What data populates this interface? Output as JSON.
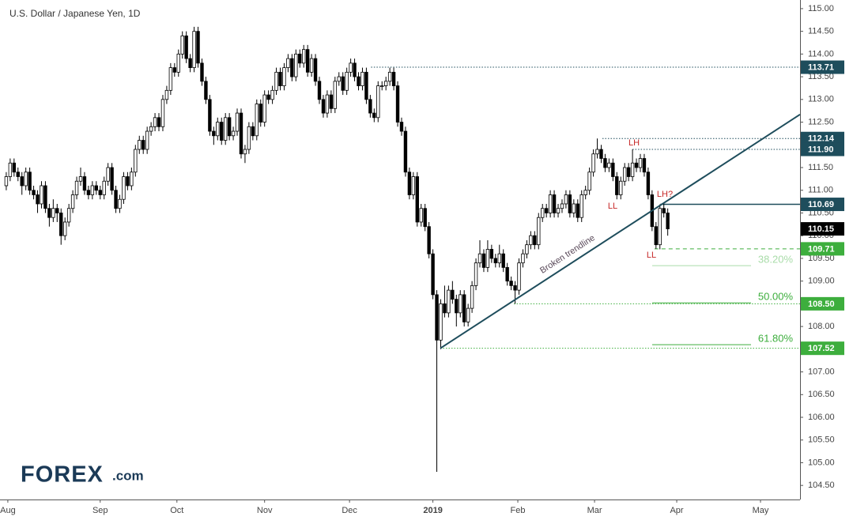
{
  "chart_data": {
    "type": "candlestick",
    "title": "U.S. Dollar / Japanese Yen, 1D",
    "brand": "FOREX",
    "brand_suffix": ".com",
    "ylim": [
      104.19,
      115.19
    ],
    "yticks": [
      {
        "value": 104.5,
        "label": "104.50"
      },
      {
        "value": 105,
        "label": "105.00"
      },
      {
        "value": 105.5,
        "label": "105.50"
      },
      {
        "value": 106,
        "label": "106.00"
      },
      {
        "value": 106.5,
        "label": "106.50"
      },
      {
        "value": 107,
        "label": "107.00"
      },
      {
        "value": 107.5,
        "label": "107.50"
      },
      {
        "value": 108,
        "label": "108.00"
      },
      {
        "value": 108.5,
        "label": "108.50"
      },
      {
        "value": 109,
        "label": "109.00"
      },
      {
        "value": 109.5,
        "label": "109.50"
      },
      {
        "value": 110,
        "label": "110.00"
      },
      {
        "value": 110.5,
        "label": "110.50"
      },
      {
        "value": 111,
        "label": "111.00"
      },
      {
        "value": 111.5,
        "label": "111.50"
      },
      {
        "value": 112,
        "label": "112.00"
      },
      {
        "value": 112.5,
        "label": "112.50"
      },
      {
        "value": 113,
        "label": "113.00"
      },
      {
        "value": 113.5,
        "label": "113.50"
      },
      {
        "value": 114,
        "label": "114.00"
      },
      {
        "value": 114.5,
        "label": "114.50"
      },
      {
        "value": 115,
        "label": "115.00"
      }
    ],
    "xlim": [
      -1.6,
      202.8
    ],
    "xticks": [
      {
        "value": 0.4,
        "label": "Aug"
      },
      {
        "value": 24,
        "label": "Sep"
      },
      {
        "value": 43.6,
        "label": "Oct"
      },
      {
        "value": 66,
        "label": "Nov"
      },
      {
        "value": 87.7,
        "label": "Dec"
      },
      {
        "value": 109,
        "label": "2019"
      },
      {
        "value": 130.7,
        "label": "Feb"
      },
      {
        "value": 150.3,
        "label": "Mar"
      },
      {
        "value": 171.3,
        "label": "Apr"
      },
      {
        "value": 192.7,
        "label": "May"
      }
    ],
    "up_color": "#ffffff",
    "down_color": "#000000",
    "candles": [
      [
        111.1,
        111.4,
        111.0,
        111.3
      ],
      [
        111.3,
        111.7,
        111.2,
        111.6
      ],
      [
        111.6,
        111.7,
        111.3,
        111.4
      ],
      [
        111.4,
        111.5,
        111.2,
        111.3
      ],
      [
        111.3,
        111.4,
        110.9,
        111.1
      ],
      [
        111.1,
        111.5,
        111.0,
        111.4
      ],
      [
        111.4,
        111.5,
        110.9,
        111.0
      ],
      [
        111.0,
        111.1,
        110.8,
        110.9
      ],
      [
        110.9,
        111.0,
        110.5,
        110.7
      ],
      [
        110.7,
        111.2,
        110.6,
        111.1
      ],
      [
        111.1,
        111.2,
        110.5,
        110.6
      ],
      [
        110.6,
        110.7,
        110.2,
        110.4
      ],
      [
        110.4,
        110.8,
        110.3,
        110.6
      ],
      [
        110.6,
        110.7,
        110.3,
        110.5
      ],
      [
        110.5,
        110.6,
        109.8,
        110.0
      ],
      [
        110.0,
        110.4,
        109.9,
        110.3
      ],
      [
        110.3,
        110.7,
        110.2,
        110.6
      ],
      [
        110.6,
        111.0,
        110.5,
        110.9
      ],
      [
        110.9,
        111.3,
        110.8,
        111.2
      ],
      [
        111.2,
        111.5,
        111.1,
        111.3
      ],
      [
        111.3,
        111.4,
        110.9,
        111.0
      ],
      [
        111.0,
        111.1,
        110.8,
        110.9
      ],
      [
        110.9,
        111.2,
        110.8,
        111.1
      ],
      [
        111.1,
        111.2,
        110.9,
        111.0
      ],
      [
        111.0,
        111.1,
        110.8,
        110.9
      ],
      [
        110.9,
        111.3,
        110.8,
        111.2
      ],
      [
        111.2,
        111.6,
        111.1,
        111.5
      ],
      [
        111.5,
        111.6,
        110.9,
        111.0
      ],
      [
        111.0,
        111.1,
        110.5,
        110.6
      ],
      [
        110.6,
        110.9,
        110.5,
        110.8
      ],
      [
        110.8,
        111.4,
        110.7,
        111.3
      ],
      [
        111.3,
        111.4,
        111.0,
        111.1
      ],
      [
        111.1,
        111.5,
        111.0,
        111.4
      ],
      [
        111.4,
        112.0,
        111.3,
        111.9
      ],
      [
        111.9,
        112.2,
        111.8,
        112.1
      ],
      [
        112.1,
        112.2,
        111.8,
        111.9
      ],
      [
        111.9,
        112.4,
        111.8,
        112.3
      ],
      [
        112.3,
        112.5,
        112.2,
        112.4
      ],
      [
        112.4,
        112.7,
        112.3,
        112.6
      ],
      [
        112.6,
        112.7,
        112.3,
        112.4
      ],
      [
        112.4,
        113.1,
        112.3,
        113.0
      ],
      [
        113.0,
        113.3,
        112.9,
        113.2
      ],
      [
        113.2,
        113.8,
        113.1,
        113.7
      ],
      [
        113.7,
        113.8,
        113.5,
        113.6
      ],
      [
        113.6,
        114.1,
        113.5,
        114.0
      ],
      [
        114.0,
        114.5,
        113.9,
        114.4
      ],
      [
        114.4,
        114.5,
        113.8,
        113.9
      ],
      [
        113.9,
        114.0,
        113.6,
        113.7
      ],
      [
        113.7,
        114.6,
        113.6,
        114.5
      ],
      [
        114.5,
        114.6,
        113.7,
        113.8
      ],
      [
        113.8,
        113.9,
        113.3,
        113.4
      ],
      [
        113.4,
        113.5,
        112.9,
        113.0
      ],
      [
        113.0,
        113.1,
        112.2,
        112.3
      ],
      [
        112.3,
        112.4,
        112.0,
        112.2
      ],
      [
        112.2,
        112.6,
        112.1,
        112.5
      ],
      [
        112.5,
        112.6,
        112.0,
        112.1
      ],
      [
        112.1,
        112.7,
        112.0,
        112.6
      ],
      [
        112.6,
        112.7,
        112.1,
        112.2
      ],
      [
        112.2,
        112.4,
        112.1,
        112.3
      ],
      [
        112.3,
        112.8,
        112.2,
        112.7
      ],
      [
        112.7,
        112.8,
        111.7,
        111.8
      ],
      [
        111.8,
        112.0,
        111.6,
        111.9
      ],
      [
        111.9,
        112.5,
        111.8,
        112.4
      ],
      [
        112.4,
        112.5,
        112.1,
        112.2
      ],
      [
        112.2,
        113.0,
        112.1,
        112.9
      ],
      [
        112.9,
        113.0,
        112.4,
        112.5
      ],
      [
        112.5,
        113.2,
        112.4,
        113.1
      ],
      [
        113.1,
        113.2,
        112.9,
        113.0
      ],
      [
        113.0,
        113.3,
        112.9,
        113.2
      ],
      [
        113.2,
        113.7,
        113.1,
        113.6
      ],
      [
        113.6,
        113.7,
        113.2,
        113.3
      ],
      [
        113.3,
        113.8,
        113.2,
        113.7
      ],
      [
        113.7,
        114.0,
        113.6,
        113.9
      ],
      [
        113.9,
        114.0,
        113.4,
        113.5
      ],
      [
        113.5,
        114.1,
        113.4,
        114.0
      ],
      [
        114.0,
        114.1,
        113.7,
        113.8
      ],
      [
        113.8,
        114.2,
        113.7,
        114.1
      ],
      [
        114.1,
        114.2,
        113.5,
        113.6
      ],
      [
        113.6,
        114.0,
        113.5,
        113.9
      ],
      [
        113.9,
        114.0,
        113.3,
        113.4
      ],
      [
        113.4,
        113.5,
        112.9,
        113.0
      ],
      [
        113.0,
        113.1,
        112.6,
        112.7
      ],
      [
        112.7,
        113.2,
        112.6,
        113.1
      ],
      [
        113.1,
        113.2,
        112.7,
        112.8
      ],
      [
        112.8,
        113.5,
        112.7,
        113.4
      ],
      [
        113.4,
        113.6,
        113.3,
        113.5
      ],
      [
        113.5,
        113.6,
        113.1,
        113.2
      ],
      [
        113.2,
        113.7,
        113.1,
        113.6
      ],
      [
        113.6,
        113.9,
        113.5,
        113.8
      ],
      [
        113.8,
        113.9,
        113.4,
        113.5
      ],
      [
        113.5,
        113.6,
        113.2,
        113.3
      ],
      [
        113.3,
        113.7,
        113.2,
        113.6
      ],
      [
        113.6,
        113.7,
        112.9,
        113.0
      ],
      [
        113.0,
        113.1,
        112.6,
        112.7
      ],
      [
        112.7,
        112.8,
        112.5,
        112.6
      ],
      [
        112.6,
        113.4,
        112.5,
        113.3
      ],
      [
        113.3,
        113.4,
        113.2,
        113.3
      ],
      [
        113.3,
        113.5,
        113.2,
        113.4
      ],
      [
        113.4,
        113.7,
        113.3,
        113.6
      ],
      [
        113.6,
        113.7,
        113.2,
        113.3
      ],
      [
        113.3,
        113.4,
        112.4,
        112.5
      ],
      [
        112.5,
        112.6,
        112.2,
        112.3
      ],
      [
        112.3,
        112.4,
        111.3,
        111.4
      ],
      [
        111.4,
        111.5,
        110.8,
        110.9
      ],
      [
        110.9,
        111.4,
        110.8,
        111.3
      ],
      [
        111.3,
        111.4,
        110.2,
        110.3
      ],
      [
        110.3,
        110.7,
        110.2,
        110.6
      ],
      [
        110.6,
        110.7,
        110.1,
        110.2
      ],
      [
        110.2,
        110.3,
        109.5,
        109.6
      ],
      [
        109.6,
        109.7,
        108.6,
        108.7
      ],
      [
        108.7,
        108.8,
        104.8,
        107.7
      ],
      [
        107.7,
        108.6,
        107.5,
        108.5
      ],
      [
        108.5,
        108.9,
        108.2,
        108.3
      ],
      [
        108.3,
        108.9,
        108.2,
        108.8
      ],
      [
        108.8,
        109.0,
        108.5,
        108.6
      ],
      [
        108.6,
        108.7,
        108.0,
        108.3
      ],
      [
        108.3,
        108.8,
        108.2,
        108.7
      ],
      [
        108.7,
        108.8,
        108.0,
        108.1
      ],
      [
        108.1,
        108.5,
        108.0,
        108.4
      ],
      [
        108.4,
        109.0,
        108.3,
        108.9
      ],
      [
        108.9,
        109.5,
        108.8,
        109.4
      ],
      [
        109.4,
        109.9,
        109.3,
        109.6
      ],
      [
        109.6,
        109.7,
        109.2,
        109.3
      ],
      [
        109.3,
        109.9,
        109.2,
        109.7
      ],
      [
        109.7,
        109.8,
        109.4,
        109.5
      ],
      [
        109.5,
        109.6,
        109.3,
        109.4
      ],
      [
        109.4,
        109.8,
        109.3,
        109.6
      ],
      [
        109.6,
        109.7,
        109.2,
        109.3
      ],
      [
        109.3,
        109.4,
        108.9,
        109.0
      ],
      [
        109.0,
        109.1,
        108.8,
        108.9
      ],
      [
        108.9,
        109.0,
        108.5,
        108.8
      ],
      [
        108.8,
        109.5,
        108.7,
        109.4
      ],
      [
        109.4,
        109.7,
        109.3,
        109.6
      ],
      [
        109.6,
        109.9,
        109.5,
        109.8
      ],
      [
        109.8,
        110.1,
        109.7,
        110.0
      ],
      [
        110.0,
        110.1,
        109.7,
        109.8
      ],
      [
        109.8,
        110.5,
        109.7,
        110.4
      ],
      [
        110.4,
        110.7,
        110.3,
        110.6
      ],
      [
        110.6,
        110.7,
        110.4,
        110.5
      ],
      [
        110.5,
        111.0,
        110.4,
        110.9
      ],
      [
        110.9,
        111.0,
        110.4,
        110.5
      ],
      [
        110.5,
        110.7,
        110.4,
        110.6
      ],
      [
        110.6,
        110.8,
        110.5,
        110.7
      ],
      [
        110.7,
        111.0,
        110.6,
        110.9
      ],
      [
        110.9,
        111.0,
        110.4,
        110.5
      ],
      [
        110.5,
        110.8,
        110.4,
        110.7
      ],
      [
        110.7,
        110.8,
        110.3,
        110.4
      ],
      [
        110.4,
        111.0,
        110.3,
        110.9
      ],
      [
        110.9,
        111.1,
        110.8,
        111.0
      ],
      [
        111.0,
        111.5,
        110.9,
        111.4
      ],
      [
        111.4,
        111.9,
        111.3,
        111.8
      ],
      [
        111.8,
        112.14,
        111.7,
        111.9
      ],
      [
        111.9,
        112.0,
        111.6,
        111.7
      ],
      [
        111.7,
        111.8,
        111.4,
        111.5
      ],
      [
        111.5,
        111.7,
        111.4,
        111.6
      ],
      [
        111.6,
        111.7,
        111.2,
        111.3
      ],
      [
        111.3,
        111.4,
        110.8,
        110.9
      ],
      [
        110.9,
        111.3,
        110.8,
        111.2
      ],
      [
        111.2,
        111.6,
        111.1,
        111.5
      ],
      [
        111.5,
        111.6,
        111.2,
        111.3
      ],
      [
        111.3,
        111.9,
        111.2,
        111.6
      ],
      [
        111.6,
        111.7,
        111.4,
        111.5
      ],
      [
        111.5,
        111.8,
        111.4,
        111.7
      ],
      [
        111.7,
        111.8,
        111.3,
        111.4
      ],
      [
        111.4,
        111.5,
        110.8,
        110.9
      ],
      [
        110.9,
        111.0,
        110.1,
        110.2
      ],
      [
        110.2,
        110.3,
        109.71,
        109.8
      ],
      [
        109.8,
        110.69,
        109.7,
        110.6
      ],
      [
        110.6,
        110.7,
        110.4,
        110.5
      ],
      [
        110.5,
        110.6,
        110.0,
        110.15
      ]
    ],
    "levels": [
      {
        "value": 113.71,
        "label": "113.71",
        "color": "#1e4d5c",
        "line": "dotted"
      },
      {
        "value": 112.14,
        "label": "112.14",
        "color": "#1e4d5c",
        "line": "dotted"
      },
      {
        "value": 111.9,
        "label": "111.90",
        "color": "#1e4d5c",
        "line": "dotted"
      },
      {
        "value": 110.69,
        "label": "110.69",
        "color": "#1e4d5c",
        "line": "solid"
      },
      {
        "value": 110.15,
        "label": "110.15",
        "color": "#000000",
        "line": "none"
      },
      {
        "value": 109.71,
        "label": "109.71",
        "color": "#3dae3d",
        "line": "dashed"
      },
      {
        "value": 108.5,
        "label": "108.50",
        "color": "#3dae3d",
        "line": "dotted"
      },
      {
        "value": 107.52,
        "label": "107.52",
        "color": "#3dae3d",
        "line": "dotted"
      }
    ],
    "fib_levels": [
      {
        "label": "38.20%",
        "price": 109.34,
        "color": "#a9dca9"
      },
      {
        "label": "50.00%",
        "price": 108.52,
        "color": "#3dae3d"
      },
      {
        "label": "61.80%",
        "price": 107.6,
        "color": "#3dae3d"
      }
    ],
    "trendline": {
      "label": "Broken trendline",
      "color": "#1e4d5c",
      "x": [
        110.9,
        202.8
      ],
      "y": [
        107.52,
        112.67
      ]
    },
    "annotations": [
      {
        "text": "LH"
      },
      {
        "text": "LL"
      },
      {
        "text": "LH?"
      },
      {
        "text": "LL"
      }
    ],
    "annotation_color": "#c62828"
  }
}
